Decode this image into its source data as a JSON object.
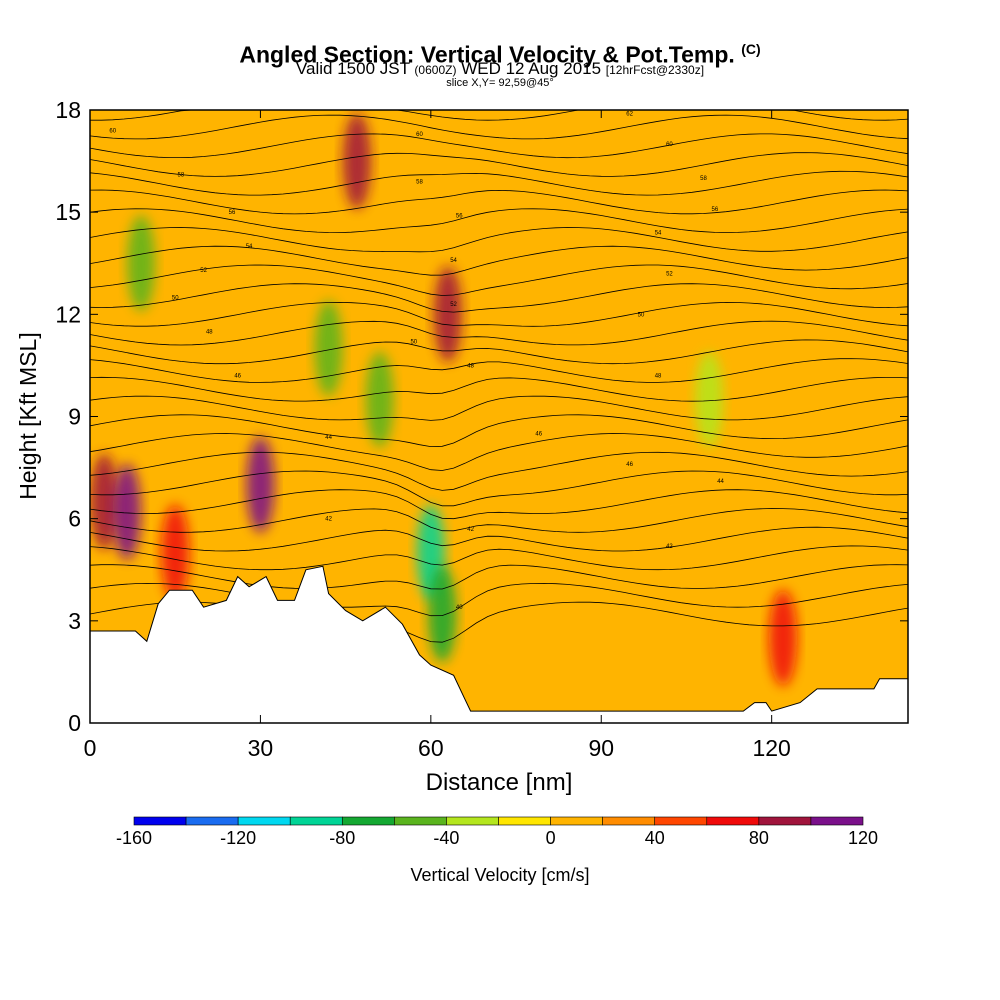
{
  "chart_data": {
    "type": "heatmap",
    "title": "Angled Section: Vertical Velocity & Pot.Temp.",
    "title_unit": "(C)",
    "subtitle_main": "Valid 1500 JST",
    "subtitle_utc": "(0600Z)",
    "subtitle_date": "WED 12 Aug 2015",
    "subtitle_fcst": "[12hrFcst@2330z]",
    "slice_label": "slice X,Y= 92,59@45°",
    "xlabel": "Distance [nm]",
    "ylabel": "Height [Kft MSL]",
    "xlim": [
      0,
      144
    ],
    "ylim": [
      0,
      18
    ],
    "x_ticks": [
      0,
      30,
      60,
      90,
      120
    ],
    "y_ticks": [
      0,
      3,
      6,
      9,
      12,
      15,
      18
    ],
    "x_tick_labels": [
      "0",
      "30",
      "60",
      "90",
      "120"
    ],
    "y_tick_labels": [
      "0",
      "3",
      "6",
      "9",
      "12",
      "15",
      "18"
    ],
    "colorbar": {
      "label": "Vertical Velocity [cm/s]",
      "levels": [
        -160,
        -140,
        -120,
        -100,
        -80,
        -60,
        -40,
        -20,
        0,
        20,
        40,
        60,
        80,
        100,
        120
      ],
      "tick_labels": [
        "-160",
        "-120",
        "-80",
        "-40",
        "0",
        "40",
        "80",
        "120"
      ],
      "colors": [
        "#0000ee",
        "#1a6cf0",
        "#00d8f0",
        "#00d496",
        "#14a832",
        "#5ab41e",
        "#b4e61e",
        "#ffe600",
        "#ffb400",
        "#ff8c00",
        "#ff4600",
        "#f00a0a",
        "#a0143c",
        "#7a108a"
      ]
    },
    "terrain": [
      [
        0,
        2.7
      ],
      [
        8,
        2.7
      ],
      [
        10,
        2.4
      ],
      [
        12,
        3.5
      ],
      [
        14,
        3.9
      ],
      [
        18,
        3.9
      ],
      [
        20,
        3.4
      ],
      [
        24,
        3.6
      ],
      [
        26,
        4.3
      ],
      [
        28,
        4.0
      ],
      [
        31,
        4.3
      ],
      [
        33,
        3.6
      ],
      [
        36,
        3.6
      ],
      [
        38,
        4.5
      ],
      [
        41,
        4.6
      ],
      [
        42,
        3.8
      ],
      [
        45,
        3.3
      ],
      [
        48,
        3.0
      ],
      [
        52,
        3.4
      ],
      [
        55,
        2.9
      ],
      [
        58,
        2.0
      ],
      [
        60,
        1.7
      ],
      [
        64,
        1.4
      ],
      [
        66,
        0.7
      ],
      [
        67,
        0.35
      ],
      [
        115,
        0.35
      ],
      [
        117,
        0.6
      ],
      [
        119,
        0.6
      ],
      [
        120,
        0.35
      ],
      [
        125,
        0.6
      ],
      [
        128,
        1.0
      ],
      [
        138,
        1.0
      ],
      [
        139,
        1.3
      ],
      [
        144,
        1.3
      ]
    ],
    "velocity_cells": [
      {
        "x": 2.5,
        "h": 6.5,
        "value": 80
      },
      {
        "x": 6.5,
        "h": 6.2,
        "value": 110
      },
      {
        "x": 15,
        "h": 5.0,
        "value": 60
      },
      {
        "x": 30,
        "h": 7.0,
        "value": 110
      },
      {
        "x": 47,
        "h": 16.5,
        "value": 80
      },
      {
        "x": 63,
        "h": 12.0,
        "value": 80
      },
      {
        "x": 9,
        "h": 13.5,
        "value": -60
      },
      {
        "x": 42,
        "h": 11.0,
        "value": -50
      },
      {
        "x": 51,
        "h": 9.5,
        "value": -60
      },
      {
        "x": 60,
        "h": 5.0,
        "value": -100
      },
      {
        "x": 62,
        "h": 3.2,
        "value": -80
      },
      {
        "x": 109,
        "h": 9.5,
        "value": -30
      },
      {
        "x": 122,
        "h": 2.5,
        "value": 70
      }
    ],
    "contour_labels": [
      {
        "x": 4,
        "h": 17.4,
        "text": "60"
      },
      {
        "x": 16,
        "h": 16.1,
        "text": "58"
      },
      {
        "x": 25,
        "h": 15.0,
        "text": "56"
      },
      {
        "x": 28,
        "h": 14.0,
        "text": "54"
      },
      {
        "x": 20,
        "h": 13.3,
        "text": "52"
      },
      {
        "x": 15,
        "h": 12.5,
        "text": "50"
      },
      {
        "x": 21,
        "h": 11.5,
        "text": "48"
      },
      {
        "x": 26,
        "h": 10.2,
        "text": "46"
      },
      {
        "x": 42,
        "h": 8.4,
        "text": "44"
      },
      {
        "x": 42,
        "h": 6.0,
        "text": "42"
      },
      {
        "x": 58,
        "h": 17.3,
        "text": "60"
      },
      {
        "x": 58,
        "h": 15.9,
        "text": "58"
      },
      {
        "x": 65,
        "h": 14.9,
        "text": "56"
      },
      {
        "x": 64,
        "h": 13.6,
        "text": "54"
      },
      {
        "x": 64,
        "h": 12.3,
        "text": "52"
      },
      {
        "x": 57,
        "h": 11.2,
        "text": "50"
      },
      {
        "x": 67,
        "h": 10.5,
        "text": "48"
      },
      {
        "x": 67,
        "h": 5.7,
        "text": "42"
      },
      {
        "x": 65,
        "h": 3.4,
        "text": "40"
      },
      {
        "x": 95,
        "h": 17.9,
        "text": "62"
      },
      {
        "x": 102,
        "h": 17.0,
        "text": "60"
      },
      {
        "x": 108,
        "h": 16.0,
        "text": "58"
      },
      {
        "x": 110,
        "h": 15.1,
        "text": "56"
      },
      {
        "x": 100,
        "h": 14.4,
        "text": "54"
      },
      {
        "x": 102,
        "h": 13.2,
        "text": "52"
      },
      {
        "x": 97,
        "h": 12.0,
        "text": "50"
      },
      {
        "x": 100,
        "h": 10.2,
        "text": "48"
      },
      {
        "x": 79,
        "h": 8.5,
        "text": "46"
      },
      {
        "x": 95,
        "h": 7.6,
        "text": "46"
      },
      {
        "x": 111,
        "h": 7.1,
        "text": "44"
      },
      {
        "x": 102,
        "h": 5.2,
        "text": "42"
      }
    ]
  }
}
